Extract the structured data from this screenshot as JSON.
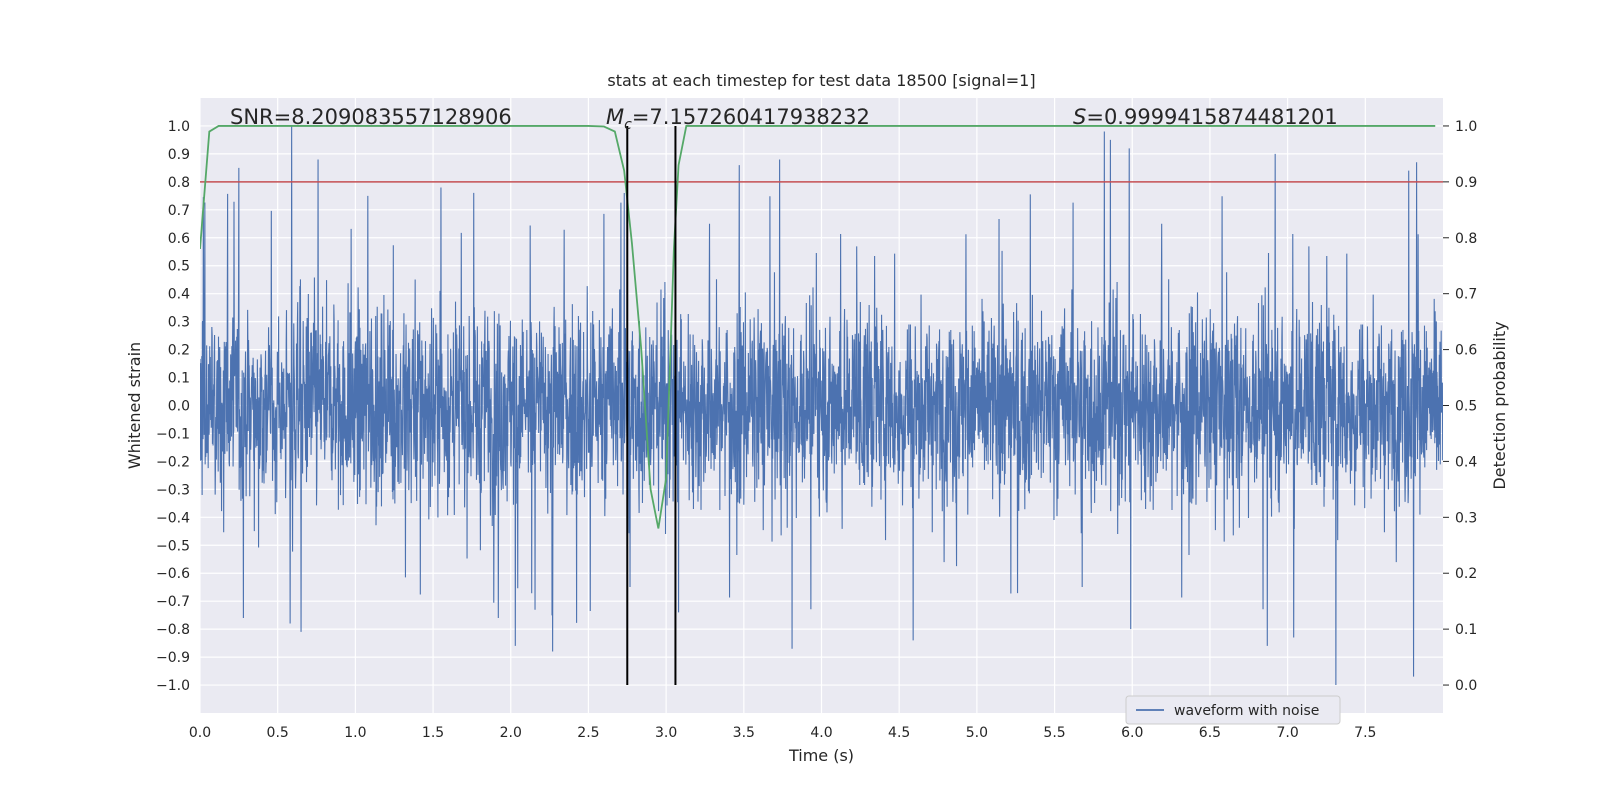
{
  "chart_data": {
    "type": "line",
    "title": "stats at each timestep for test data 18500 [signal=1]",
    "xlabel": "Time (s)",
    "ylabel": "Whitened strain",
    "y2label": "Detection probability",
    "xlim": [
      0.0,
      8.0
    ],
    "ylim": [
      -1.1,
      1.1
    ],
    "y2lim": [
      -0.05,
      1.05
    ],
    "grid": true,
    "x_ticks": [
      "0.0",
      "0.5",
      "1.0",
      "1.5",
      "2.0",
      "2.5",
      "3.0",
      "3.5",
      "4.0",
      "4.5",
      "5.0",
      "5.5",
      "6.0",
      "6.5",
      "7.0",
      "7.5"
    ],
    "y_ticks": [
      "1.0",
      "0.9",
      "0.8",
      "0.7",
      "0.6",
      "0.5",
      "0.4",
      "0.3",
      "0.2",
      "0.1",
      "0.0",
      "−0.1",
      "−0.2",
      "−0.3",
      "−0.4",
      "−0.5",
      "−0.6",
      "−0.7",
      "−0.8",
      "−0.9",
      "−1.0"
    ],
    "y2_ticks": [
      "1.0",
      "0.9",
      "0.8",
      "0.7",
      "0.6",
      "0.5",
      "0.4",
      "0.3",
      "0.2",
      "0.1",
      "0.0"
    ],
    "annotations": {
      "snr": "SNR=8.209083557128906",
      "mc_symbol": "M",
      "mc_sub": "c",
      "mc_value": "=7.157260417938232",
      "s_symbol": "S",
      "s_value": "=0.9999415874481201"
    },
    "series": [
      {
        "name": "waveform with noise",
        "color": "#4c72b0",
        "kind": "noise",
        "sample_rate_per_s": 512,
        "x_range": [
          0.0,
          8.0
        ],
        "typical_envelope": 0.4,
        "peak_points": [
          {
            "x": 0.59,
            "y": 1.0
          },
          {
            "x": 0.25,
            "y": 0.85
          },
          {
            "x": 0.28,
            "y": 0.87
          },
          {
            "x": 0.76,
            "y": 0.88
          },
          {
            "x": 1.08,
            "y": 0.75
          },
          {
            "x": 1.55,
            "y": 0.78
          },
          {
            "x": 2.73,
            "y": 0.76
          },
          {
            "x": 3.47,
            "y": 0.86
          },
          {
            "x": 3.73,
            "y": 0.88
          },
          {
            "x": 5.82,
            "y": 0.98
          },
          {
            "x": 5.86,
            "y": 0.95
          },
          {
            "x": 5.98,
            "y": 0.92
          },
          {
            "x": 6.92,
            "y": 0.9
          },
          {
            "x": 7.78,
            "y": 0.84
          },
          {
            "x": 7.83,
            "y": 0.87
          },
          {
            "x": 7.31,
            "y": -1.0
          },
          {
            "x": 7.81,
            "y": -0.97
          },
          {
            "x": 2.27,
            "y": -0.88
          },
          {
            "x": 2.03,
            "y": -0.86
          },
          {
            "x": 3.81,
            "y": -0.87
          },
          {
            "x": 4.59,
            "y": -0.84
          },
          {
            "x": 6.87,
            "y": -0.86
          },
          {
            "x": 7.04,
            "y": -0.83
          },
          {
            "x": 0.58,
            "y": -0.78
          },
          {
            "x": 0.65,
            "y": -0.81
          },
          {
            "x": 0.28,
            "y": -0.76
          },
          {
            "x": 1.92,
            "y": -0.76
          },
          {
            "x": 5.99,
            "y": -0.8
          },
          {
            "x": 3.08,
            "y": -0.74
          }
        ]
      },
      {
        "name": "detection probability",
        "color": "#55a868",
        "axis": "right",
        "x": [
          0.0,
          0.06,
          0.12,
          0.5,
          1.0,
          1.5,
          2.0,
          2.5,
          2.6,
          2.67,
          2.73,
          2.78,
          2.84,
          2.9,
          2.95,
          3.0,
          3.05,
          3.08,
          3.13,
          3.5,
          4.0,
          5.0,
          6.0,
          7.0,
          7.95
        ],
        "values": [
          0.78,
          0.99,
          1.0,
          1.0,
          1.0,
          1.0,
          1.0,
          1.0,
          0.999,
          0.99,
          0.92,
          0.79,
          0.6,
          0.35,
          0.28,
          0.37,
          0.78,
          0.93,
          1.0,
          1.0,
          1.0,
          1.0,
          1.0,
          1.0,
          1.0
        ]
      }
    ],
    "hlines": [
      {
        "axis": "right",
        "y": 0.9,
        "color": "#c44e52"
      }
    ],
    "vlines": [
      {
        "x": 2.75,
        "color": "#000000"
      },
      {
        "x": 3.06,
        "color": "#000000"
      }
    ],
    "legend": {
      "position": "lower-right",
      "entries": [
        {
          "label": "waveform with noise",
          "color": "#4c72b0"
        }
      ]
    },
    "colors": {
      "axes_bg": "#eaeaf2",
      "grid": "#ffffff",
      "waveform": "#4c72b0",
      "probability": "#55a868",
      "threshold": "#c44e52",
      "markers": "#000000"
    }
  }
}
